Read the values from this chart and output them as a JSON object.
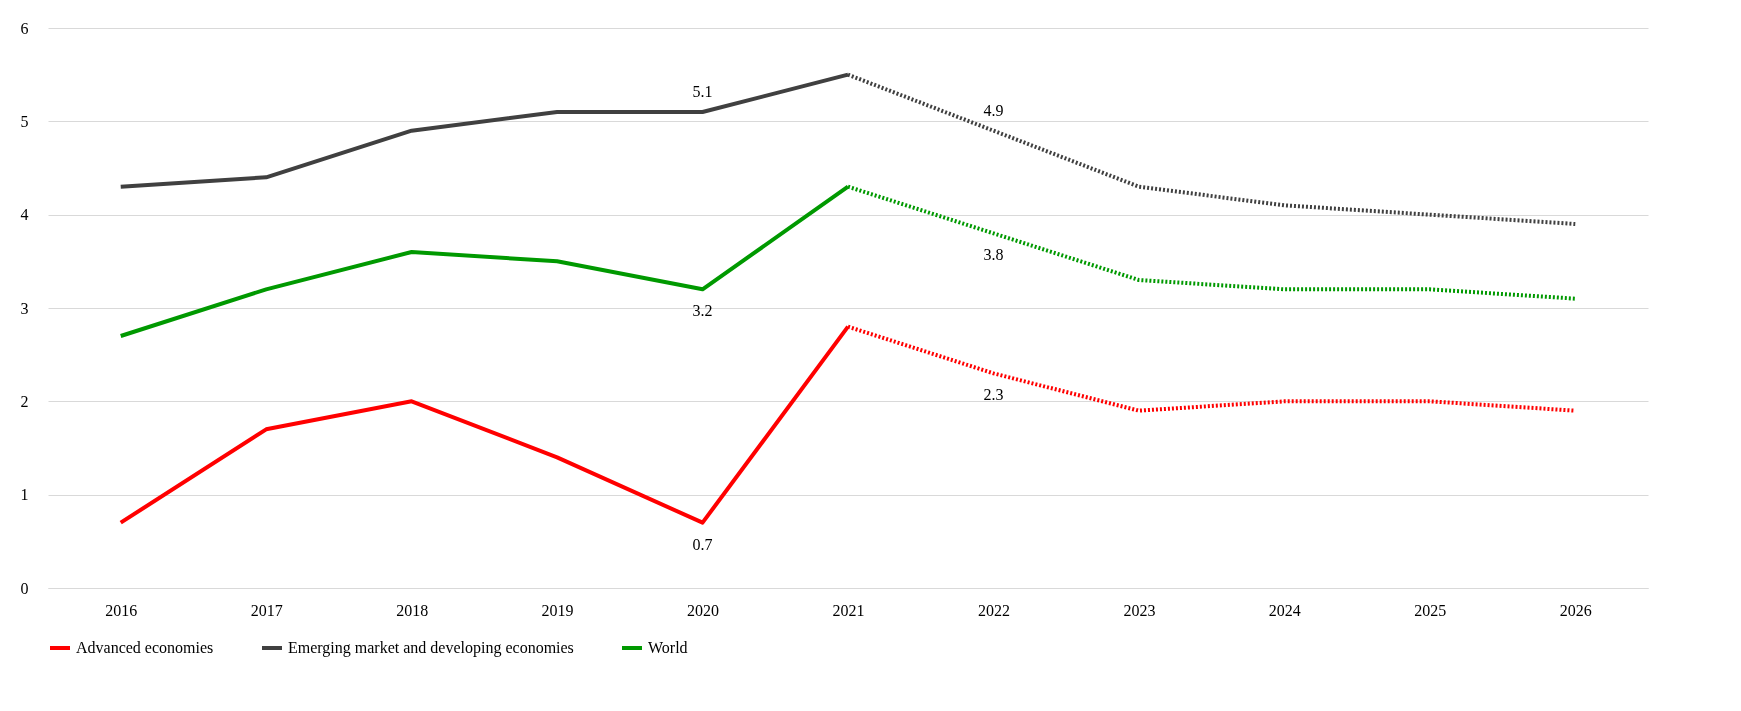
{
  "chart_data": {
    "type": "line",
    "categories": [
      "2016",
      "2017",
      "2018",
      "2019",
      "2020",
      "2021",
      "2022",
      "2023",
      "2024",
      "2025",
      "2026"
    ],
    "series": [
      {
        "name": "Advanced economies",
        "color": "#ff0000",
        "line_style": "solid",
        "values": [
          0.7,
          1.7,
          2.0,
          1.4,
          0.7,
          2.8,
          null,
          null,
          null,
          null,
          null
        ]
      },
      {
        "name": "Emerging market and developing economies",
        "color": "#404040",
        "line_style": "solid",
        "values": [
          4.3,
          4.4,
          4.9,
          5.1,
          5.1,
          5.5,
          null,
          null,
          null,
          null,
          null
        ]
      },
      {
        "name": "World",
        "color": "#009900",
        "line_style": "solid",
        "values": [
          2.7,
          3.2,
          3.6,
          3.5,
          3.2,
          4.3,
          null,
          null,
          null,
          null,
          null
        ]
      },
      {
        "color": "#ff0000",
        "line_style": "dotted",
        "values": [
          null,
          null,
          null,
          null,
          null,
          2.8,
          2.3,
          1.9,
          2.0,
          2.0,
          1.9
        ]
      },
      {
        "color": "#404040",
        "line_style": "dotted",
        "values": [
          null,
          null,
          null,
          null,
          null,
          5.5,
          4.9,
          4.3,
          4.1,
          4.0,
          3.9
        ]
      },
      {
        "color": "#009900",
        "line_style": "dotted",
        "values": [
          null,
          null,
          null,
          null,
          null,
          4.3,
          3.8,
          3.3,
          3.2,
          3.2,
          3.1
        ]
      }
    ],
    "annotations": [
      {
        "text": "5.1",
        "x": "2020",
        "y": 5.1
      },
      {
        "text": "4.9",
        "x": "2022",
        "y": 4.9
      },
      {
        "text": "3.8",
        "x": "2022",
        "y": 3.8
      },
      {
        "text": "3.2",
        "x": "2020",
        "y": 3.2
      },
      {
        "text": "0.7",
        "x": "2020",
        "y": 0.7
      },
      {
        "text": "2.3",
        "x": "2022",
        "y": 2.3
      }
    ],
    "ylim": [
      0,
      6
    ],
    "yticks": [
      0,
      1,
      2,
      3,
      4,
      5,
      6
    ],
    "grid": "y",
    "legend": "bottom",
    "marker": "none"
  }
}
